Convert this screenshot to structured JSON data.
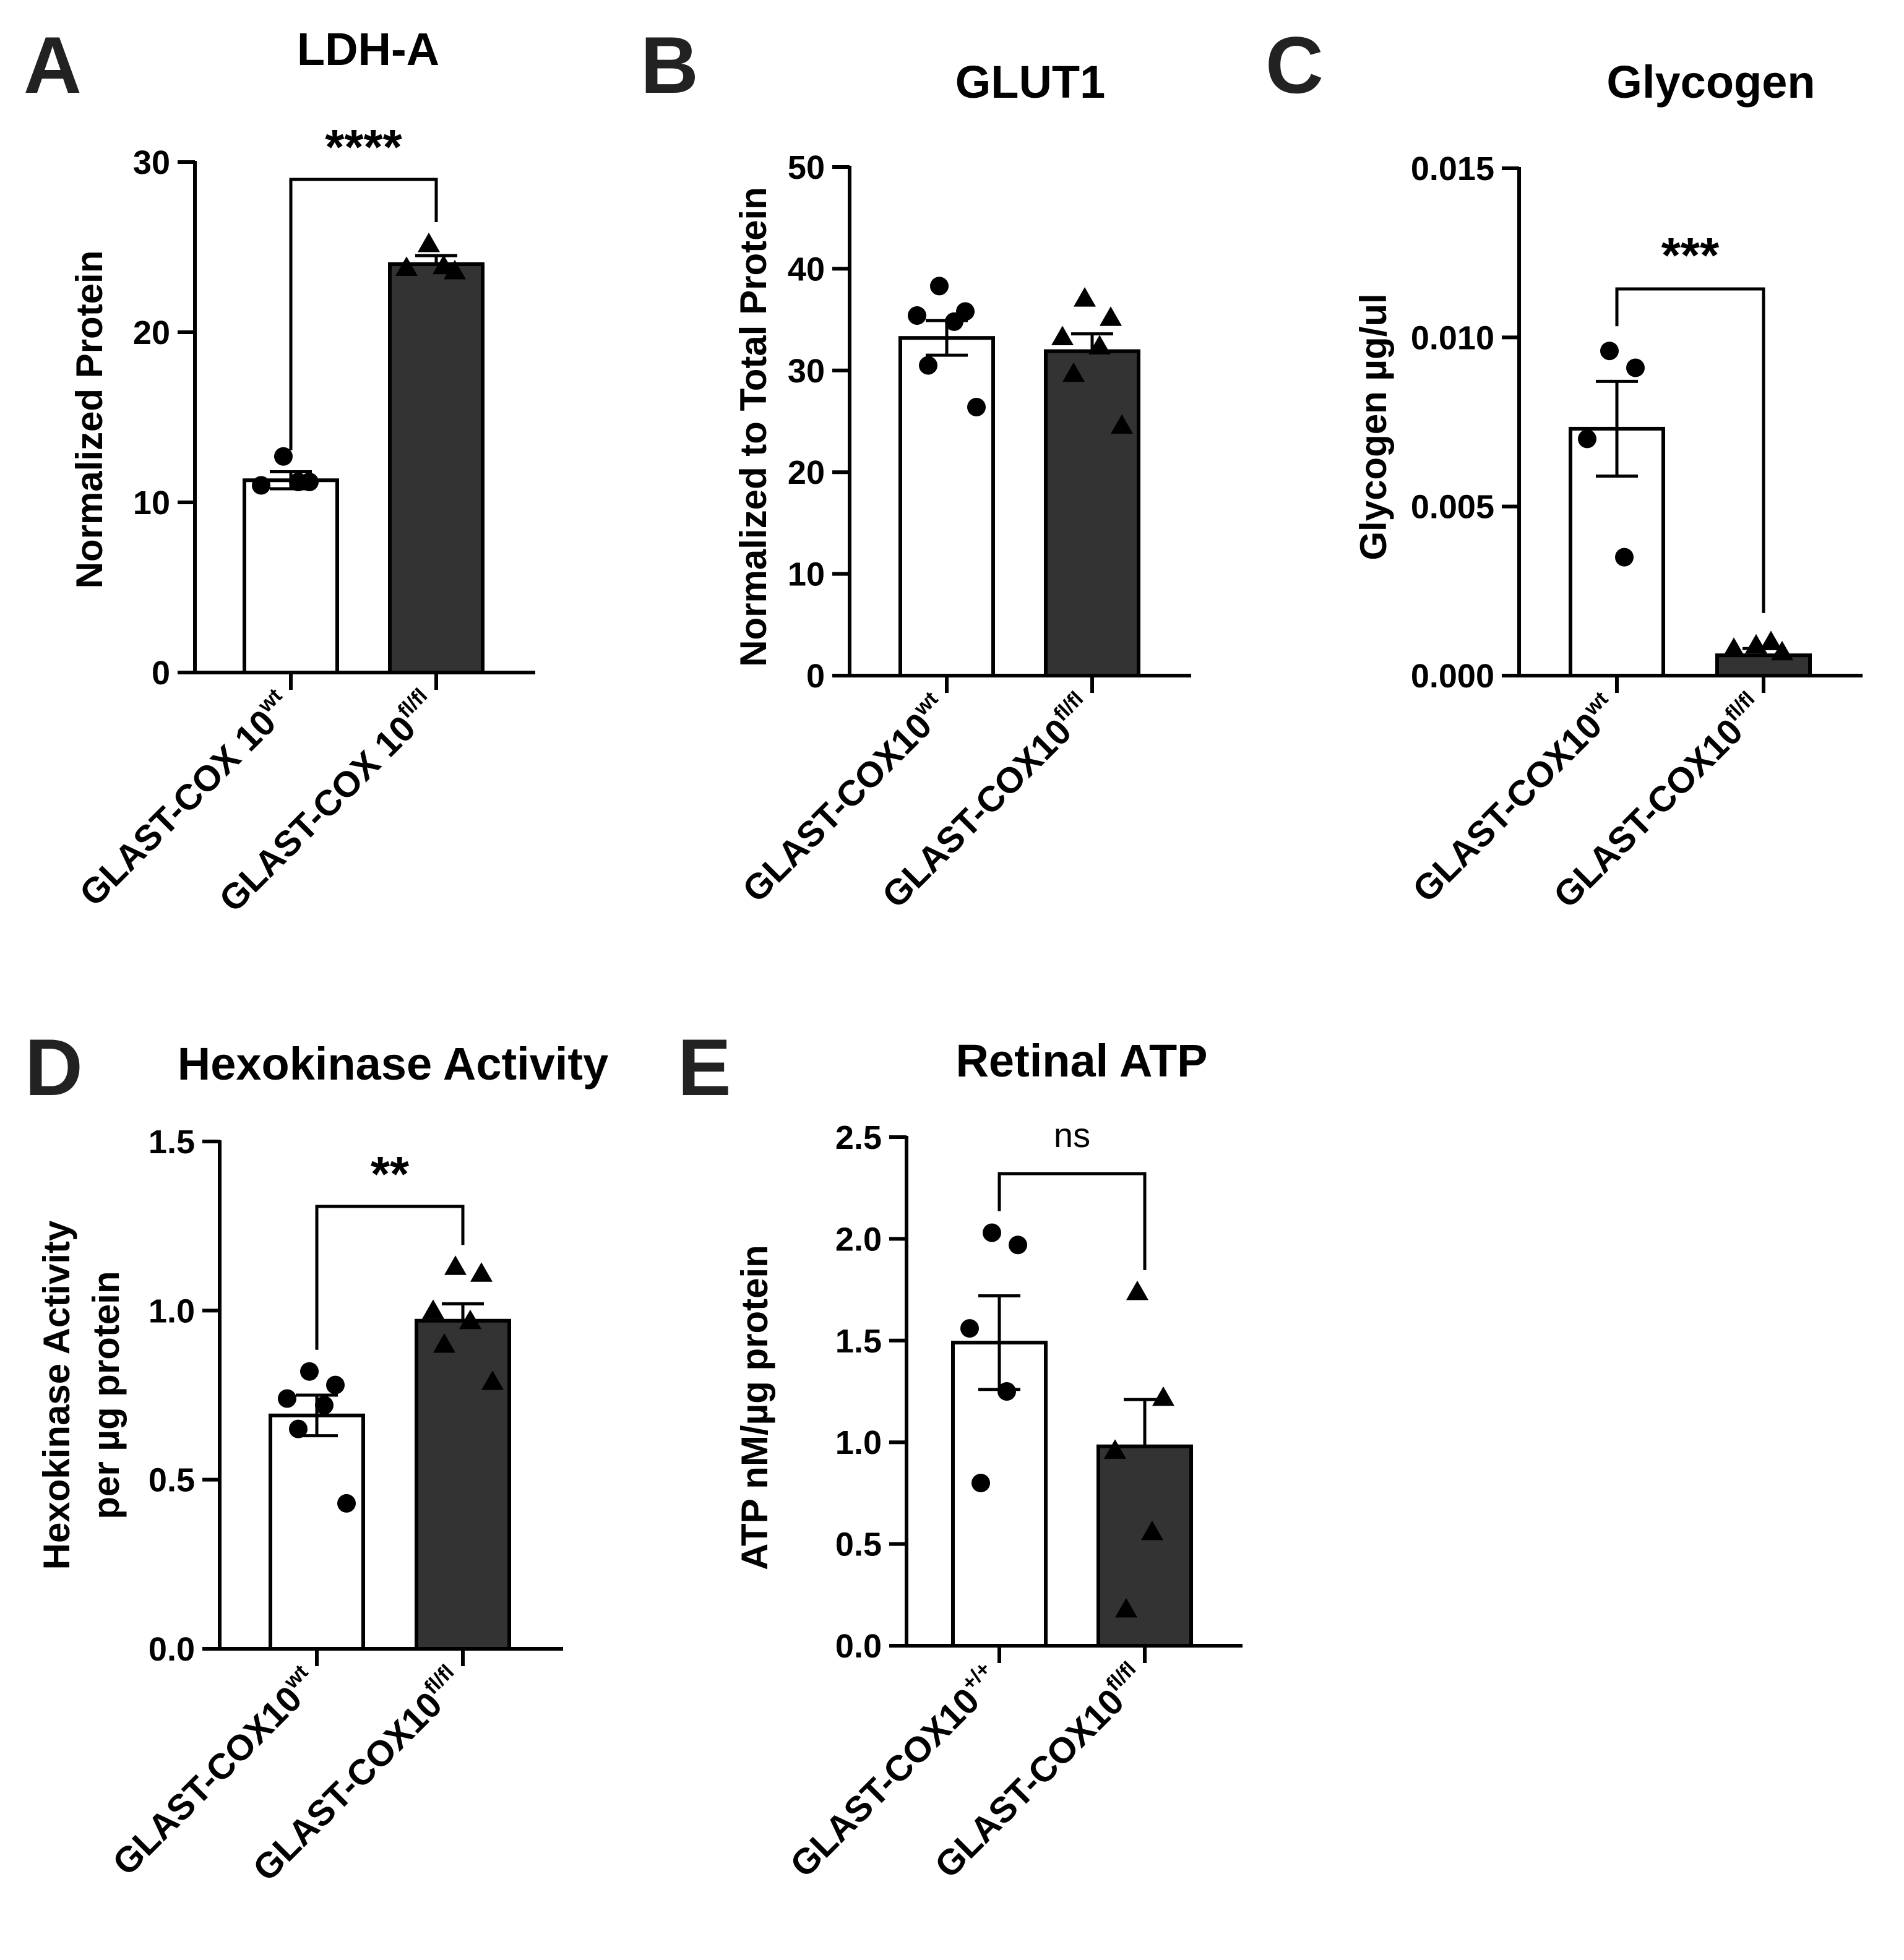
{
  "chart_data": [
    {
      "id": "A",
      "type": "bar",
      "title": "LDH-A",
      "ylabel": "Normalized Protein",
      "ylim": [
        0,
        30
      ],
      "yticks": [
        "0",
        "10",
        "20",
        "30"
      ],
      "ytick_values": [
        0,
        10,
        20,
        30
      ],
      "categories": [
        {
          "base": "GLAST-COX 10",
          "sup": "wt"
        },
        {
          "base": "GLAST-COX 10",
          "sup": "fl/fl"
        }
      ],
      "means": [
        11.3,
        24.0
      ],
      "sem": [
        0.5,
        0.5
      ],
      "points": [
        [
          12.7,
          11.2,
          11.0,
          11.2
        ],
        [
          25.2,
          23.6,
          23.8,
          23.9
        ]
      ],
      "markers": [
        "circle",
        "triangle"
      ],
      "bar_colors": [
        "#ffffff",
        "#333333"
      ],
      "significance": "****"
    },
    {
      "id": "B",
      "type": "bar",
      "title": "GLUT1",
      "ylabel": "Normalized to Total Protein",
      "ylim": [
        0,
        50
      ],
      "yticks": [
        "0",
        "10",
        "20",
        "30",
        "40",
        "50"
      ],
      "ytick_values": [
        0,
        10,
        20,
        30,
        40,
        50
      ],
      "categories": [
        {
          "base": "GLAST-COX10",
          "sup": "wt"
        },
        {
          "base": "GLAST-COX10",
          "sup": "fl/fl"
        }
      ],
      "means": [
        33.2,
        31.9
      ],
      "sem": [
        1.7,
        1.7
      ],
      "points": [
        [
          38.3,
          35.8,
          35.4,
          34.8,
          30.5,
          26.4
        ],
        [
          37.1,
          35.2,
          33.3,
          32.4,
          29.7,
          24.6
        ]
      ],
      "markers": [
        "circle",
        "triangle"
      ],
      "bar_colors": [
        "#ffffff",
        "#333333"
      ],
      "significance": ""
    },
    {
      "id": "C",
      "type": "bar",
      "title": "Glycogen",
      "ylabel": "Glycogen µg/ul",
      "ylim": [
        0,
        0.015
      ],
      "yticks": [
        "0.000",
        "0.005",
        "0.010",
        "0.015"
      ],
      "ytick_values": [
        0,
        0.005,
        0.01,
        0.015
      ],
      "categories": [
        {
          "base": "GLAST-COX10",
          "sup": "wt"
        },
        {
          "base": "GLAST-COX10",
          "sup": "fl/fl"
        }
      ],
      "means": [
        0.0073,
        0.0006
      ],
      "sem": [
        0.0014,
        0.0002
      ],
      "points": [
        [
          0.0096,
          0.0091,
          0.007,
          0.0035
        ],
        [
          0.0009,
          0.0007,
          0.0008,
          0.001
        ]
      ],
      "markers": [
        "circle",
        "triangle"
      ],
      "bar_colors": [
        "#ffffff",
        "#333333"
      ],
      "significance": "***"
    },
    {
      "id": "D",
      "type": "bar",
      "title": "Hexokinase Activity",
      "ylabel": [
        "Hexokinase Activity",
        "per µg protein"
      ],
      "ylim": [
        0,
        1.5
      ],
      "yticks": [
        "0.0",
        "0.5",
        "1.0",
        "1.5"
      ],
      "ytick_values": [
        0,
        0.5,
        1.0,
        1.5
      ],
      "categories": [
        {
          "base": "GLAST-COX10",
          "sup": "wt"
        },
        {
          "base": "GLAST-COX10",
          "sup": "fl/fl"
        }
      ],
      "means": [
        0.69,
        0.97
      ],
      "sem": [
        0.06,
        0.05
      ],
      "points": [
        [
          0.82,
          0.78,
          0.74,
          0.72,
          0.65,
          0.43
        ],
        [
          1.13,
          1.11,
          1.0,
          0.97,
          0.9,
          0.79
        ]
      ],
      "markers": [
        "circle",
        "triangle"
      ],
      "bar_colors": [
        "#ffffff",
        "#333333"
      ],
      "significance": "**"
    },
    {
      "id": "E",
      "type": "bar",
      "title": "Retinal ATP",
      "ylabel": "ATP nM/µg protein",
      "ylim": [
        0,
        2.5
      ],
      "yticks": [
        "0.0",
        "0.5",
        "1.0",
        "1.5",
        "2.0",
        "2.5"
      ],
      "ytick_values": [
        0,
        0.5,
        1.0,
        1.5,
        2.0,
        2.5
      ],
      "categories": [
        {
          "base": "GLAST-COX10",
          "sup": "+/+"
        },
        {
          "base": "GLAST-COX10",
          "sup": "fl/fl"
        }
      ],
      "means": [
        1.49,
        0.98
      ],
      "sem": [
        0.23,
        0.23
      ],
      "points": [
        [
          2.03,
          1.97,
          1.56,
          1.25,
          0.8
        ],
        [
          1.74,
          1.22,
          0.96,
          0.56,
          0.18
        ]
      ],
      "markers": [
        "circle",
        "triangle"
      ],
      "bar_colors": [
        "#ffffff",
        "#333333"
      ],
      "significance": "ns"
    }
  ]
}
